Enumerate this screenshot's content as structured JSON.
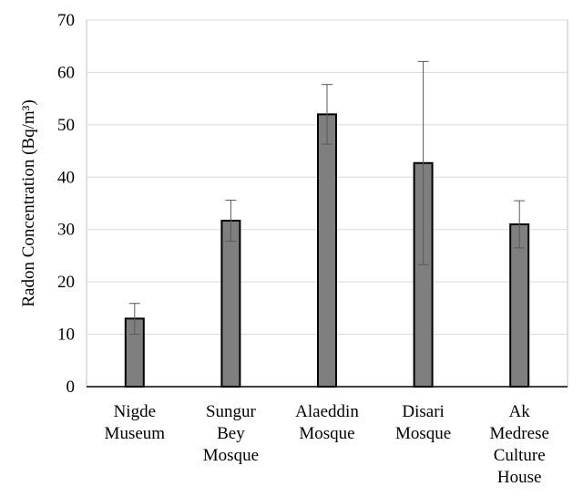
{
  "chart_data": {
    "type": "bar",
    "title": "",
    "xlabel": "",
    "ylabel": "Radon Concentration (Bq/m³)",
    "ylim": [
      0,
      70
    ],
    "yticks": [
      0,
      10,
      20,
      30,
      40,
      50,
      60,
      70
    ],
    "grid": true,
    "legend": "none",
    "categories": [
      [
        "Nigde",
        "Museum"
      ],
      [
        "Sungur",
        "Bey",
        "Mosque"
      ],
      [
        "Alaeddin",
        "Mosque"
      ],
      [
        "Disari",
        "Mosque"
      ],
      [
        "Ak",
        "Medrese",
        "Culture",
        "House"
      ]
    ],
    "values": [
      13,
      31.7,
      52,
      42.7,
      31
    ],
    "error_low": [
      10,
      27.8,
      46.3,
      23.3,
      26.5
    ],
    "error_high": [
      15.9,
      35.6,
      57.7,
      62.1,
      35.5
    ],
    "colors": {
      "bar_fill": "#7f7f7f",
      "bar_stroke": "#000000",
      "gridline": "#d9d9d9",
      "axis": "#000000",
      "plot_border": "#bfbfbf",
      "error_bar": "#595959"
    }
  }
}
